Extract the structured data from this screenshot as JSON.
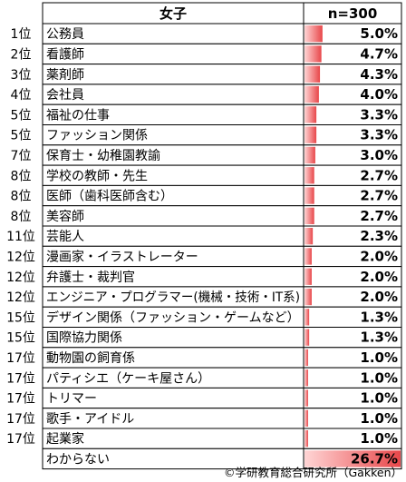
{
  "header": {
    "group": "女子",
    "sample": "n=300"
  },
  "credit": "©学研教育総合研究所（Gakken）",
  "colors": {
    "bar_light": "#ffd5d5",
    "bar_dark": "#e8474a",
    "border": "#000000"
  },
  "chart_data": {
    "type": "bar",
    "orientation": "horizontal",
    "title": "女子",
    "unit": "%",
    "xlim": [
      0,
      26.7
    ],
    "rows": [
      {
        "rank": "1位",
        "label": "公務員",
        "value": 5.0,
        "value_label": "5.0%"
      },
      {
        "rank": "2位",
        "label": "看護師",
        "value": 4.7,
        "value_label": "4.7%"
      },
      {
        "rank": "3位",
        "label": "薬剤師",
        "value": 4.3,
        "value_label": "4.3%"
      },
      {
        "rank": "4位",
        "label": "会社員",
        "value": 4.0,
        "value_label": "4.0%"
      },
      {
        "rank": "5位",
        "label": "福祉の仕事",
        "value": 3.3,
        "value_label": "3.3%"
      },
      {
        "rank": "5位",
        "label": "ファッション関係",
        "value": 3.3,
        "value_label": "3.3%"
      },
      {
        "rank": "7位",
        "label": "保育士・幼稚園教諭",
        "value": 3.0,
        "value_label": "3.0%"
      },
      {
        "rank": "8位",
        "label": "学校の教師・先生",
        "value": 2.7,
        "value_label": "2.7%"
      },
      {
        "rank": "8位",
        "label": "医師（歯科医師含む）",
        "value": 2.7,
        "value_label": "2.7%"
      },
      {
        "rank": "8位",
        "label": "美容師",
        "value": 2.7,
        "value_label": "2.7%"
      },
      {
        "rank": "11位",
        "label": "芸能人",
        "value": 2.3,
        "value_label": "2.3%"
      },
      {
        "rank": "12位",
        "label": "漫画家・イラストレーター",
        "value": 2.0,
        "value_label": "2.0%"
      },
      {
        "rank": "12位",
        "label": "弁護士・裁判官",
        "value": 2.0,
        "value_label": "2.0%"
      },
      {
        "rank": "12位",
        "label": "エンジニア・プログラマー(機械・技術・IT系)",
        "value": 2.0,
        "value_label": "2.0%"
      },
      {
        "rank": "15位",
        "label": "デザイン関係（ファッション・ゲームなど）",
        "value": 1.3,
        "value_label": "1.3%"
      },
      {
        "rank": "15位",
        "label": "国際協力関係",
        "value": 1.3,
        "value_label": "1.3%"
      },
      {
        "rank": "17位",
        "label": "動物園の飼育係",
        "value": 1.0,
        "value_label": "1.0%"
      },
      {
        "rank": "17位",
        "label": "パティシエ（ケーキ屋さん）",
        "value": 1.0,
        "value_label": "1.0%"
      },
      {
        "rank": "17位",
        "label": "トリマー",
        "value": 1.0,
        "value_label": "1.0%"
      },
      {
        "rank": "17位",
        "label": "歌手・アイドル",
        "value": 1.0,
        "value_label": "1.0%"
      },
      {
        "rank": "17位",
        "label": "起業家",
        "value": 1.0,
        "value_label": "1.0%"
      },
      {
        "rank": "",
        "label": "わからない",
        "value": 26.7,
        "value_label": "26.7%"
      }
    ]
  }
}
